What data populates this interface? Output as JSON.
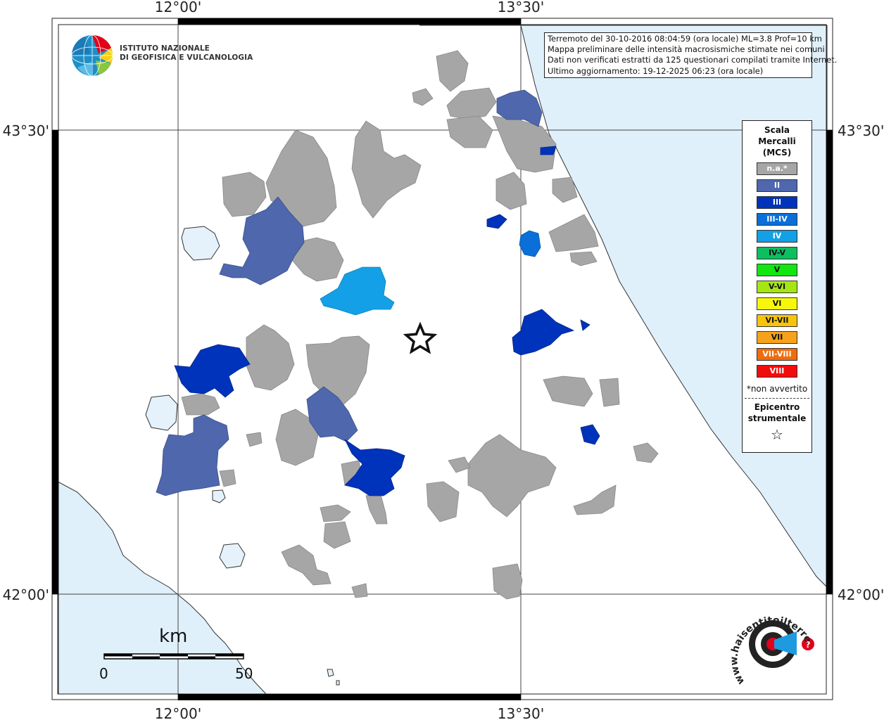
{
  "coords": {
    "top": [
      "12°00'",
      "13°30'"
    ],
    "bottom": [
      "12°00'",
      "13°30'"
    ],
    "left": [
      "43°30'",
      "42°00'"
    ],
    "right": [
      "43°30'",
      "42°00'"
    ]
  },
  "info": {
    "line1": "Terremoto del 30-10-2016 08:04:59 (ora locale) ML=3.8 Prof=10 km",
    "line2": "Mappa preliminare delle intensità macrosismiche stimate nei comuni",
    "line3": "Dati non verificati estratti da 125 questionari compilati tramite Internet.",
    "line4": "Ultimo aggiornamento: 19-12-2025 06:23 (ora locale)"
  },
  "institute": {
    "line1": "ISTITUTO NAZIONALE",
    "line2": "DI GEOFISICA E VULCANOLOGIA"
  },
  "legend": {
    "title1": "Scala",
    "title2": "Mercalli",
    "title3": "(MCS)",
    "items": [
      {
        "label": "n.a.*",
        "color": "#a6a6a6"
      },
      {
        "label": "II",
        "color": "#4f67ad"
      },
      {
        "label": "III",
        "color": "#0033bb"
      },
      {
        "label": "III-IV",
        "color": "#0a6fd8"
      },
      {
        "label": "IV",
        "color": "#13a0e6"
      },
      {
        "label": "IV-V",
        "color": "#0bbf60"
      },
      {
        "label": "V",
        "color": "#11e611"
      },
      {
        "label": "V-VI",
        "color": "#a5e612"
      },
      {
        "label": "VI",
        "color": "#f7f70c"
      },
      {
        "label": "VI-VII",
        "color": "#f7c40c"
      },
      {
        "label": "VII",
        "color": "#f7a21c"
      },
      {
        "label": "VII-VIII",
        "color": "#f26c0c"
      },
      {
        "label": "VIII",
        "color": "#f20d0d"
      }
    ],
    "note": "*non avvertito",
    "epi1": "Epicentro",
    "epi2": "strumentale",
    "star": "☆"
  },
  "scale": {
    "unit": "km",
    "min": "0",
    "max": "50"
  },
  "colors": {
    "sea": "#dff0fb",
    "lake": "#e5f2fb",
    "na": "#a6a6a6"
  },
  "watermark": {
    "text": "www.haisentitoilterremoto.it"
  }
}
